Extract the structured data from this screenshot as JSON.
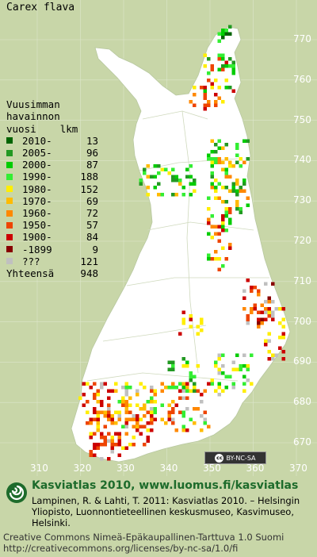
{
  "species": "Carex flava",
  "legend": {
    "title_lines": [
      "Vuusimman",
      "havainnon",
      "vuosi    lkm"
    ],
    "classes": [
      {
        "label": "2010-",
        "count": "13",
        "color": "#006400"
      },
      {
        "label": "2005-",
        "count": "96",
        "color": "#229922"
      },
      {
        "label": "2000-",
        "count": "87",
        "color": "#00cc00"
      },
      {
        "label": "1990-",
        "count": "188",
        "color": "#33ee33"
      },
      {
        "label": "1980-",
        "count": "152",
        "color": "#ffee00"
      },
      {
        "label": "1970-",
        "count": "69",
        "color": "#ffbb00"
      },
      {
        "label": "1960-",
        "count": "72",
        "color": "#ff8800"
      },
      {
        "label": "1950-",
        "count": "57",
        "color": "#ee4400"
      },
      {
        "label": "1900-",
        "count": "84",
        "color": "#cc0000"
      },
      {
        "label": "-1899",
        "count": "9",
        "color": "#880000"
      },
      {
        "label": "???",
        "count": "121",
        "color": "#c0c0c0"
      }
    ],
    "total_label": "Yhteensä",
    "total_count": "948"
  },
  "y_axis_labels": [
    "770",
    "760",
    "750",
    "740",
    "730",
    "720",
    "710",
    "700",
    "690",
    "680",
    "670"
  ],
  "x_axis_labels": [
    "310",
    "320",
    "330",
    "340",
    "350",
    "360",
    "370"
  ],
  "cc_badge": "BY-NC-SA",
  "footer": {
    "brand": "Kasviatlas 2010, www.luomus.fi/kasviatlas",
    "citation": "Lampinen, R. & Lahti, T. 2011: Kasviatlas 2010. – Helsingin Yliopisto, Luonnontieteellinen keskusmuseo, Kasvimuseo, Helsinki.",
    "license_line1": "Creative Commons Nimeä-Epäkaupallinen-Tarttuva 1.0 Suomi",
    "license_line2": "http://creativecommons.org/licenses/by-nc-sa/1.0/fi"
  },
  "colors": {
    "background": "#c8d6a8",
    "land": "#ffffff",
    "grid": "#dde6cc"
  }
}
